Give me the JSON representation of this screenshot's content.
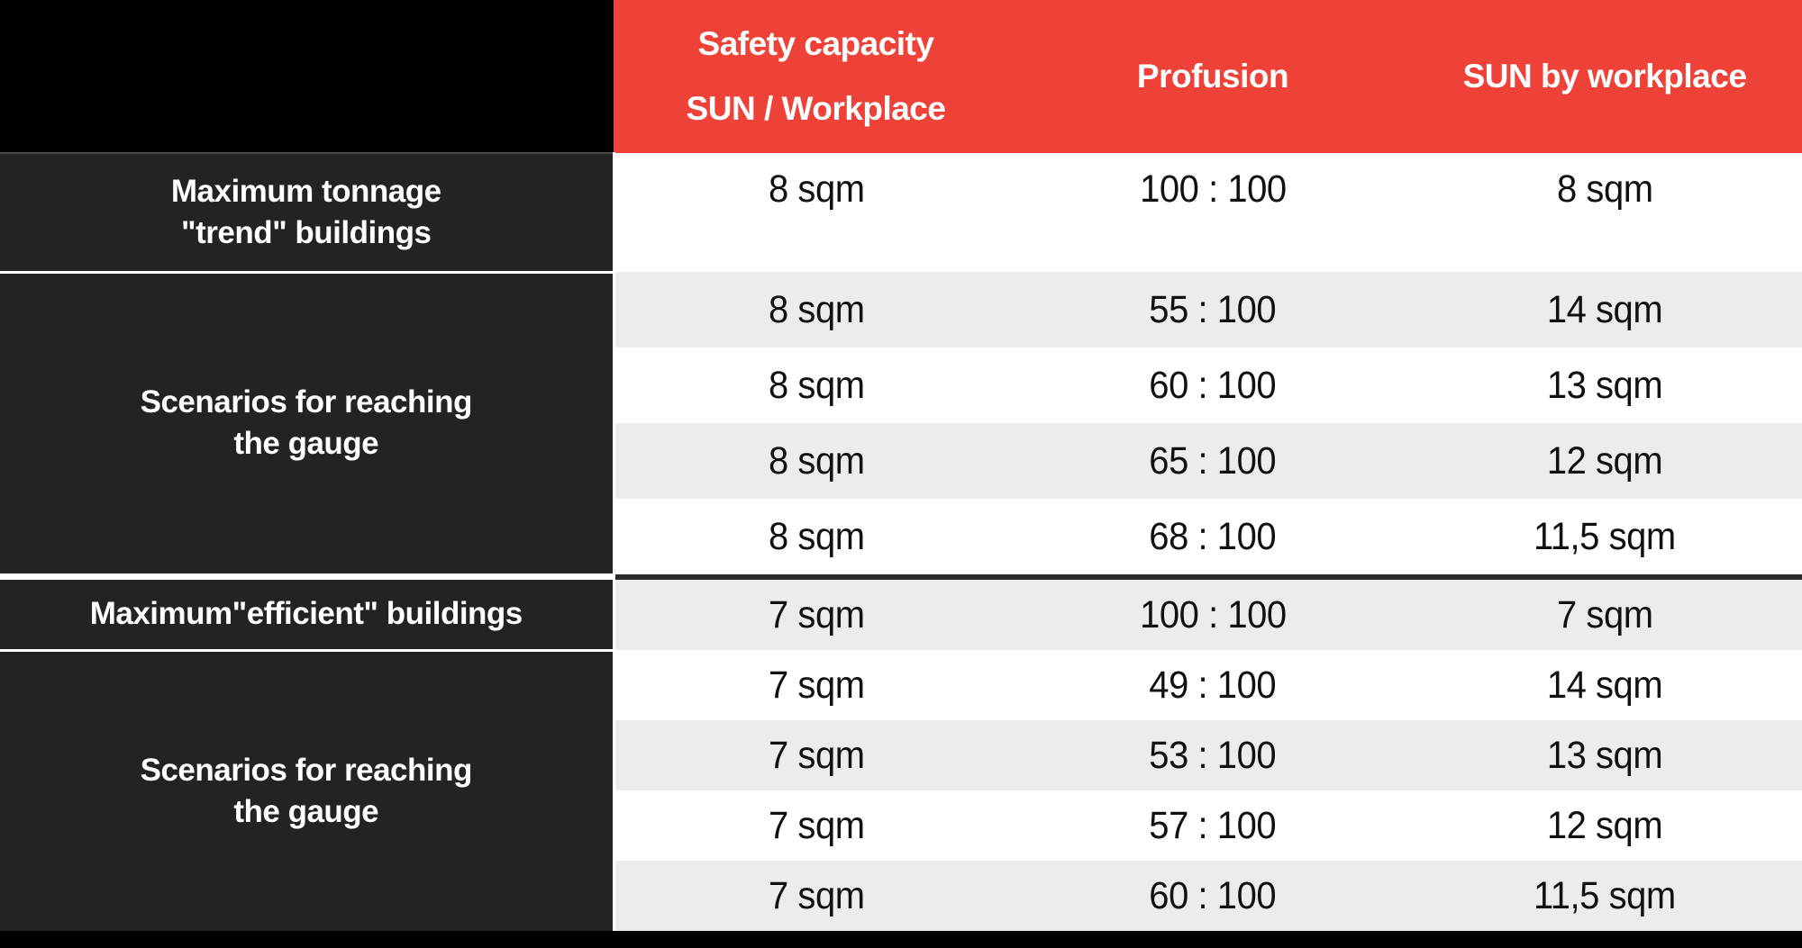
{
  "table": {
    "header": {
      "col1_line1": "Safety capacity",
      "col1_line2": "SUN / Workplace",
      "col2": "Profusion",
      "col3": "SUN by workplace"
    },
    "row_labels": {
      "trend": {
        "line1": "Maximum tonnage",
        "line2": "\"trend\" buildings"
      },
      "scenarios1": {
        "line1": "Scenarios for reaching",
        "line2": "the gauge"
      },
      "efficient": {
        "line1": "Maximum\"efficient\" buildings"
      },
      "scenarios2": {
        "line1": "Scenarios for reaching",
        "line2": "the gauge"
      }
    },
    "rows": [
      {
        "capacity": "8 sqm",
        "profusion": "100 : 100",
        "sun": "8 sqm"
      },
      {
        "capacity": "8 sqm",
        "profusion": "55 : 100",
        "sun": "14 sqm"
      },
      {
        "capacity": "8 sqm",
        "profusion": "60 : 100",
        "sun": "13 sqm"
      },
      {
        "capacity": "8 sqm",
        "profusion": "65 : 100",
        "sun": "12 sqm"
      },
      {
        "capacity": "8 sqm",
        "profusion": "68 : 100",
        "sun": "11,5 sqm"
      },
      {
        "capacity": "7 sqm",
        "profusion": "100 : 100",
        "sun": "7 sqm"
      },
      {
        "capacity": "7 sqm",
        "profusion": "49 : 100",
        "sun": "14 sqm"
      },
      {
        "capacity": "7 sqm",
        "profusion": "53 : 100",
        "sun": "13 sqm"
      },
      {
        "capacity": "7 sqm",
        "profusion": "57 : 100",
        "sun": "12 sqm"
      },
      {
        "capacity": "7 sqm",
        "profusion": "60 : 100",
        "sun": "11,5 sqm"
      }
    ],
    "colors": {
      "header_red": "#EE4238",
      "corner_black": "#000000",
      "label_dark": "#232323",
      "row_white": "#FFFFFF",
      "row_gray": "#ECECEC",
      "section_separator": "#2B2B2B",
      "text_light": "#FFFFFF",
      "text_dark": "#111111"
    }
  }
}
